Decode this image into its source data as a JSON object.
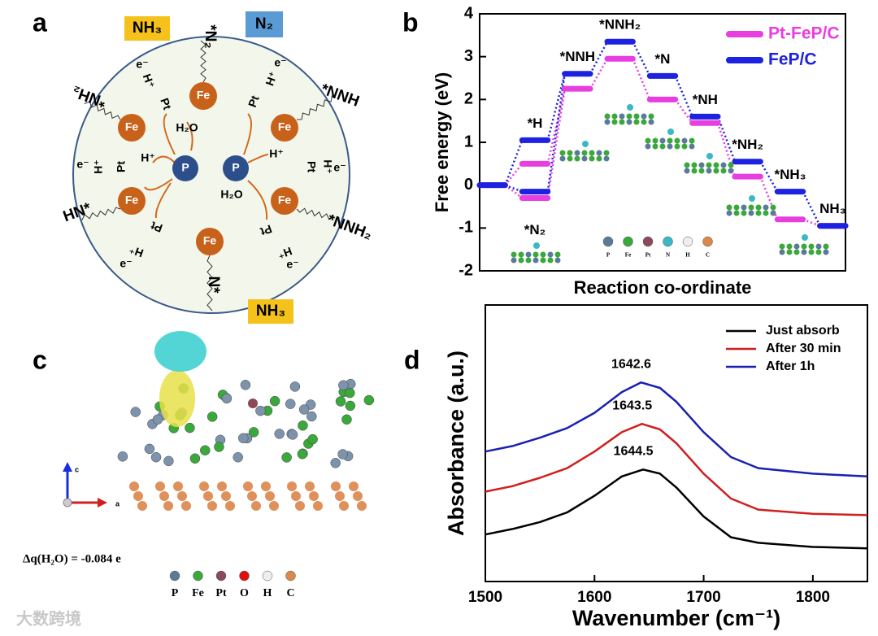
{
  "panel_labels": [
    "a",
    "b",
    "c",
    "d"
  ],
  "diagram_a": {
    "nodes": [
      {
        "label": "NH₃"
      },
      {
        "label": "N₂"
      },
      {
        "label": "*N₂"
      },
      {
        "label": "*NNH"
      },
      {
        "label": "*NH₂"
      },
      {
        "label": "HN*"
      },
      {
        "label": "*NNH₂"
      },
      {
        "label": "N*"
      },
      {
        "label": "NH₃"
      },
      {
        "label": "Fe"
      },
      {
        "label": "Fe"
      },
      {
        "label": "Fe"
      },
      {
        "label": "Fe"
      },
      {
        "label": "Fe"
      },
      {
        "label": "Fe"
      },
      {
        "label": "P"
      },
      {
        "label": "P"
      },
      {
        "label": "H₂O"
      },
      {
        "label": "H₂O"
      },
      {
        "label": "H⁺"
      },
      {
        "label": "H⁺"
      },
      {
        "label": "Pt"
      },
      {
        "label": "H⁺"
      },
      {
        "label": "e⁻"
      },
      {
        "label": "Pt"
      },
      {
        "label": "H⁺"
      },
      {
        "label": "e⁻"
      },
      {
        "label": "Pt"
      },
      {
        "label": "H⁺"
      },
      {
        "label": "e⁻"
      },
      {
        "label": "Pt"
      },
      {
        "label": "H⁺"
      },
      {
        "label": "e⁻"
      },
      {
        "label": "Pt"
      },
      {
        "label": "H⁺"
      },
      {
        "label": "e⁻"
      },
      {
        "label": "Pt"
      },
      {
        "label": "H⁺"
      },
      {
        "label": "e⁻"
      }
    ]
  },
  "chart_data": [
    {
      "type": "energy_levels",
      "xlabel": "Reaction co-ordinate",
      "ylabel": "Free energy (eV)",
      "x": [
        0,
        1,
        1,
        2,
        3,
        4,
        5,
        6,
        7,
        8
      ],
      "level_labels": [
        null,
        "*H",
        "*N₂",
        "*NNH",
        "*NNH₂",
        "*N",
        "*NH",
        "*NH₂",
        "*NH₃",
        "NH₃"
      ],
      "series": [
        {
          "name": "Pt-FeP/C",
          "color": "#e83ee0",
          "values": [
            0,
            0.5,
            -0.3,
            2.25,
            2.95,
            2.0,
            1.45,
            0.2,
            -0.8,
            -0.95
          ]
        },
        {
          "name": "FeP/C",
          "color": "#1c22e0",
          "values": [
            0,
            1.05,
            -0.15,
            2.6,
            3.35,
            2.55,
            1.6,
            0.55,
            -0.15,
            -0.95
          ]
        }
      ],
      "xlim": [
        -0.3,
        8.3
      ],
      "ylim": [
        -2,
        4
      ],
      "yticks": [
        -2,
        -1,
        0,
        1,
        2,
        3,
        4
      ],
      "legend": "upper right",
      "atom_legend": [
        "P",
        "Fe",
        "Pt",
        "N",
        "H",
        "C"
      ]
    },
    {
      "type": "line",
      "xlabel": "Wavenumber (cm⁻¹)",
      "ylabel": "Absorbance (a.u.)",
      "series": [
        {
          "name": "Just absorb",
          "color": "#000000",
          "peak": 6,
          "x": [
            1500,
            1525,
            1550,
            1575,
            1600,
            1625,
            1644.5,
            1660,
            1675,
            1700,
            1725,
            1750,
            1800,
            1850
          ],
          "values": [
            1.7,
            1.9,
            2.15,
            2.5,
            3.1,
            3.8,
            4.05,
            3.9,
            3.4,
            2.35,
            1.6,
            1.4,
            1.25,
            1.2
          ]
        },
        {
          "name": "After 30 min",
          "color": "#d01f1f",
          "peak": 6,
          "x": [
            1500,
            1525,
            1550,
            1575,
            1600,
            1625,
            1643.5,
            1660,
            1675,
            1700,
            1725,
            1750,
            1800,
            1850
          ],
          "values": [
            3.25,
            3.45,
            3.75,
            4.1,
            4.7,
            5.4,
            5.7,
            5.5,
            5.0,
            3.9,
            3.0,
            2.6,
            2.45,
            2.4
          ]
        },
        {
          "name": "After 1h",
          "color": "#1a20b0",
          "peak": 6,
          "x": [
            1500,
            1525,
            1550,
            1575,
            1600,
            1625,
            1642.6,
            1660,
            1675,
            1700,
            1725,
            1750,
            1800,
            1850
          ],
          "values": [
            4.7,
            4.9,
            5.2,
            5.55,
            6.1,
            6.85,
            7.2,
            7.0,
            6.5,
            5.4,
            4.5,
            4.1,
            3.9,
            3.8
          ]
        }
      ],
      "xlim": [
        1500,
        1850
      ],
      "ylim": [
        0,
        10
      ],
      "xticks": [
        1500,
        1600,
        1700,
        1800
      ],
      "legend": "upper right"
    }
  ],
  "panel_c": {
    "charge_transfer": "Δq(H₂O) = -0.084 e",
    "axis_labels": [
      "c",
      "a"
    ],
    "atom_legend": [
      "P",
      "Fe",
      "Pt",
      "O",
      "H",
      "C"
    ]
  },
  "watermark": "大数跨境"
}
